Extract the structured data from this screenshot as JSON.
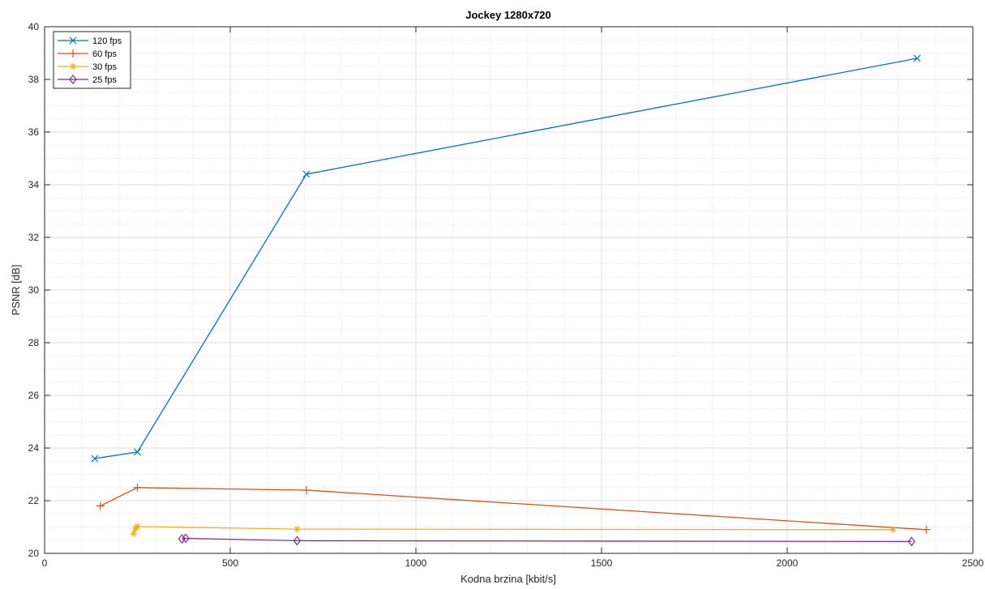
{
  "chart_data": {
    "type": "line",
    "title": "Jockey 1280x720",
    "xlabel": "Kodna brzina [kbit/s]",
    "ylabel": "PSNR [dB]",
    "xlim": [
      0,
      2500
    ],
    "ylim": [
      20,
      40
    ],
    "xticks": [
      0,
      500,
      1000,
      1500,
      2000,
      2500
    ],
    "yticks": [
      20,
      22,
      24,
      26,
      28,
      30,
      32,
      34,
      36,
      38,
      40
    ],
    "grid": true,
    "minor_grid": true,
    "legend_position": "top-left",
    "series": [
      {
        "name": "120 fps",
        "color": "#0072BD",
        "marker": "x",
        "x": [
          135,
          250,
          705,
          2350
        ],
        "y": [
          23.6,
          23.85,
          34.4,
          38.8
        ]
      },
      {
        "name": "60 fps",
        "color": "#D95319",
        "marker": "plus",
        "x": [
          150,
          250,
          705,
          2375
        ],
        "y": [
          21.8,
          22.5,
          22.4,
          20.9
        ]
      },
      {
        "name": "30 fps",
        "color": "#EDB120",
        "marker": "asterisk",
        "x": [
          240,
          245,
          250,
          680,
          2285
        ],
        "y": [
          20.75,
          20.95,
          21.02,
          20.92,
          20.9
        ]
      },
      {
        "name": "25 fps",
        "color": "#7E2F8E",
        "marker": "diamond",
        "x": [
          370,
          380,
          680,
          2335
        ],
        "y": [
          20.55,
          20.57,
          20.48,
          20.45
        ]
      }
    ]
  }
}
